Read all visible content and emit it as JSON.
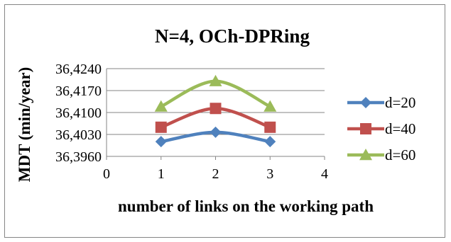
{
  "chart_data": {
    "type": "line",
    "title": "N=4, OCh-DPRing",
    "xlabel": "number of links on the working path",
    "ylabel": "MDT (min/year)",
    "x": [
      1,
      2,
      3
    ],
    "xlim": [
      0,
      4
    ],
    "xticks": [
      "0",
      "1",
      "2",
      "3",
      "4"
    ],
    "ylim": [
      36.396,
      36.424
    ],
    "yticks": [
      "36,3960",
      "36,4030",
      "36,4100",
      "36,4170",
      "36,4240"
    ],
    "grid": "horizontal",
    "legend_position": "right",
    "series": [
      {
        "name": "d=20",
        "values": [
          36.4007,
          36.4037,
          36.4007
        ],
        "color": "#4F81BD",
        "marker": "diamond"
      },
      {
        "name": "d=40",
        "values": [
          36.4053,
          36.4113,
          36.4053
        ],
        "color": "#C0504D",
        "marker": "square"
      },
      {
        "name": "d=60",
        "values": [
          36.4119,
          36.42,
          36.4119
        ],
        "color": "#9BBB59",
        "marker": "triangle"
      }
    ]
  }
}
